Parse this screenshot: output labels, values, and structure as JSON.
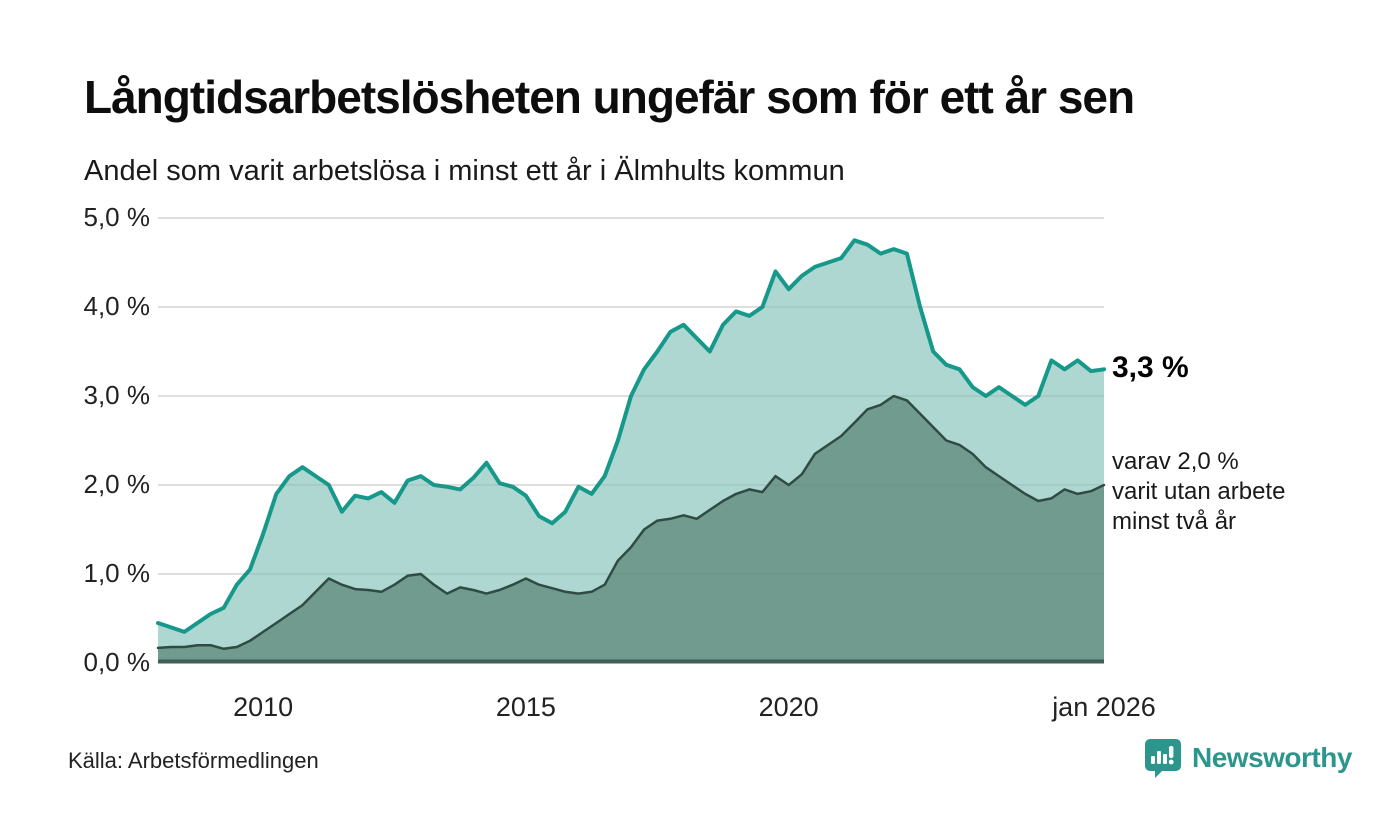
{
  "header": {
    "title": "Långtidsarbetslösheten ungefär som för ett år sen",
    "subtitle": "Andel som varit arbetslösa i minst ett år i Älmhults kommun"
  },
  "annotations": {
    "latest_total": "3,3 %",
    "two_year_lines": [
      "varav 2,0 %",
      "varit utan arbete",
      "minst två år"
    ]
  },
  "source": "Källa: Arbetsförmedlingen",
  "logo": {
    "text": "Newsworthy",
    "icon": "speech-bubble-bar-chart-icon"
  },
  "colors": {
    "line_total": "#16988a",
    "fill_total": "#a6d4cc",
    "line_two_year": "#2e4c44",
    "fill_two_year": "#6f988d",
    "baseline": "#3e5e56",
    "gridline": "#e4e4e4",
    "logo_teal": "#2d968c"
  },
  "chart_data": {
    "type": "area",
    "title": "Långtidsarbetslösheten ungefär som för ett år sen",
    "subtitle": "Andel som varit arbetslösa i minst ett år i Älmhults kommun",
    "unit": "%",
    "time_start": "2008-Q1",
    "time_end": "2026-Q1",
    "frequency": "quarterly",
    "ylim": [
      0,
      5
    ],
    "grid": "horizontal",
    "yticks": [
      {
        "label": "0,0 %",
        "value": 0
      },
      {
        "label": "1,0 %",
        "value": 1
      },
      {
        "label": "2,0 %",
        "value": 2
      },
      {
        "label": "3,0 %",
        "value": 3
      },
      {
        "label": "4,0 %",
        "value": 4
      },
      {
        "label": "5,0 %",
        "value": 5
      }
    ],
    "xticks": [
      {
        "label": "2010",
        "index": 8
      },
      {
        "label": "2015",
        "index": 28
      },
      {
        "label": "2020",
        "index": 48
      },
      {
        "label": "jan 2026",
        "index": 72
      }
    ],
    "series": [
      {
        "name": "Andel arbetslösa minst ett år",
        "latest_value": 3.3,
        "values": [
          0.45,
          0.4,
          0.35,
          0.45,
          0.55,
          0.62,
          0.88,
          1.05,
          1.45,
          1.9,
          2.1,
          2.2,
          2.1,
          2.0,
          1.7,
          1.88,
          1.85,
          1.92,
          1.8,
          2.05,
          2.1,
          2.0,
          1.98,
          1.95,
          2.08,
          2.25,
          2.02,
          1.98,
          1.88,
          1.65,
          1.57,
          1.7,
          1.98,
          1.9,
          2.1,
          2.5,
          3.0,
          3.3,
          3.5,
          3.72,
          3.8,
          3.65,
          3.5,
          3.8,
          3.95,
          3.9,
          4.0,
          4.4,
          4.2,
          4.35,
          4.45,
          4.5,
          4.55,
          4.75,
          4.7,
          4.6,
          4.65,
          4.6,
          4.0,
          3.5,
          3.35,
          3.3,
          3.1,
          3.0,
          3.1,
          3.0,
          2.9,
          3.0,
          3.4,
          3.3,
          3.4,
          3.28,
          3.3
        ]
      },
      {
        "name": "Andel arbetslösa minst två år",
        "latest_value": 2.0,
        "values": [
          0.17,
          0.18,
          0.18,
          0.2,
          0.2,
          0.16,
          0.18,
          0.25,
          0.35,
          0.45,
          0.55,
          0.65,
          0.8,
          0.95,
          0.88,
          0.83,
          0.82,
          0.8,
          0.88,
          0.98,
          1.0,
          0.88,
          0.78,
          0.85,
          0.82,
          0.78,
          0.82,
          0.88,
          0.95,
          0.88,
          0.84,
          0.8,
          0.78,
          0.8,
          0.88,
          1.15,
          1.3,
          1.5,
          1.6,
          1.62,
          1.66,
          1.62,
          1.72,
          1.82,
          1.9,
          1.95,
          1.92,
          2.1,
          2.0,
          2.12,
          2.35,
          2.45,
          2.55,
          2.7,
          2.85,
          2.9,
          3.0,
          2.95,
          2.8,
          2.65,
          2.5,
          2.45,
          2.35,
          2.2,
          2.1,
          2.0,
          1.9,
          1.82,
          1.85,
          1.95,
          1.9,
          1.93,
          2.0
        ]
      }
    ]
  }
}
